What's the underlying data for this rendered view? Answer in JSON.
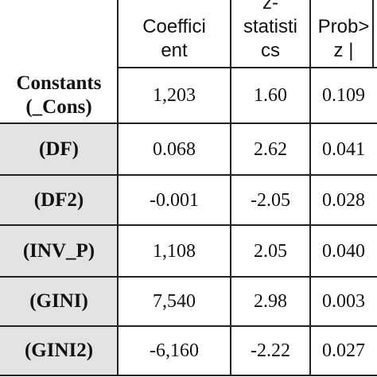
{
  "table": {
    "header": [
      [
        "Coeffici",
        "ent"
      ],
      [
        "z-",
        "statisti",
        "cs"
      ],
      [
        "Prob>",
        "z |"
      ]
    ],
    "rows": [
      [
        [
          "Constants",
          "(_Cons)"
        ],
        "1,203",
        "1.60",
        "0.109"
      ],
      [
        [
          "(DF)"
        ],
        "0.068",
        "2.62",
        "0.041"
      ],
      [
        [
          "(DF2)"
        ],
        "-0.001",
        "-2.05",
        "0.028"
      ],
      [
        [
          "(INV_P)"
        ],
        "1,108",
        "2.05",
        "0.040"
      ],
      [
        [
          "(GINI)"
        ],
        "7,540",
        "2.98",
        "0.003"
      ],
      [
        [
          "(GINI2)"
        ],
        "-6,160",
        "-2.22",
        "0.027"
      ]
    ]
  }
}
